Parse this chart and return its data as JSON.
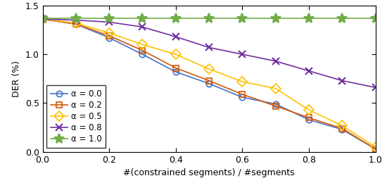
{
  "x": [
    0,
    0.1,
    0.2,
    0.3,
    0.4,
    0.5,
    0.6,
    0.7,
    0.8,
    0.9,
    1.0
  ],
  "alpha_0_0": [
    1.36,
    1.31,
    1.17,
    1.0,
    0.82,
    0.7,
    0.56,
    0.49,
    0.33,
    0.23,
    0.03
  ],
  "alpha_0_2": [
    1.36,
    1.31,
    1.19,
    1.04,
    0.86,
    0.73,
    0.59,
    0.47,
    0.35,
    0.24,
    0.03
  ],
  "alpha_0_5": [
    1.36,
    1.32,
    1.22,
    1.1,
    1.0,
    0.85,
    0.72,
    0.65,
    0.43,
    0.27,
    0.05
  ],
  "alpha_0_8": [
    1.36,
    1.35,
    1.33,
    1.28,
    1.18,
    1.07,
    1.0,
    0.93,
    0.83,
    0.73,
    0.66
  ],
  "alpha_1_0": [
    1.37,
    1.37,
    1.37,
    1.37,
    1.37,
    1.37,
    1.37,
    1.37,
    1.37,
    1.37,
    1.37
  ],
  "colors": {
    "alpha_0_0": "#4472C4",
    "alpha_0_2": "#D4560A",
    "alpha_0_5": "#FFC000",
    "alpha_0_8": "#7030A0",
    "alpha_1_0": "#70AD47"
  },
  "labels": {
    "alpha_0_0": "α = 0.0",
    "alpha_0_2": "α = 0.2",
    "alpha_0_5": "α = 0.5",
    "alpha_0_8": "α = 0.8",
    "alpha_1_0": "α = 1.0"
  },
  "markers": {
    "alpha_0_0": "o",
    "alpha_0_2": "s",
    "alpha_0_5": "D",
    "alpha_0_8": "x",
    "alpha_1_0": "*"
  },
  "markersizes": {
    "alpha_0_0": 6,
    "alpha_0_2": 6,
    "alpha_0_5": 7,
    "alpha_0_8": 7,
    "alpha_1_0": 10
  },
  "ylabel": "DER (%)",
  "xlabel": "#(constrained segments) / #segments",
  "xlim": [
    0,
    1
  ],
  "ylim": [
    0,
    1.5
  ],
  "yticks": [
    0,
    0.5,
    1.0,
    1.5
  ],
  "xticks": [
    0,
    0.2,
    0.4,
    0.6,
    0.8,
    1.0
  ],
  "background_color": "#ffffff",
  "linewidth": 1.2,
  "font_size": 9
}
